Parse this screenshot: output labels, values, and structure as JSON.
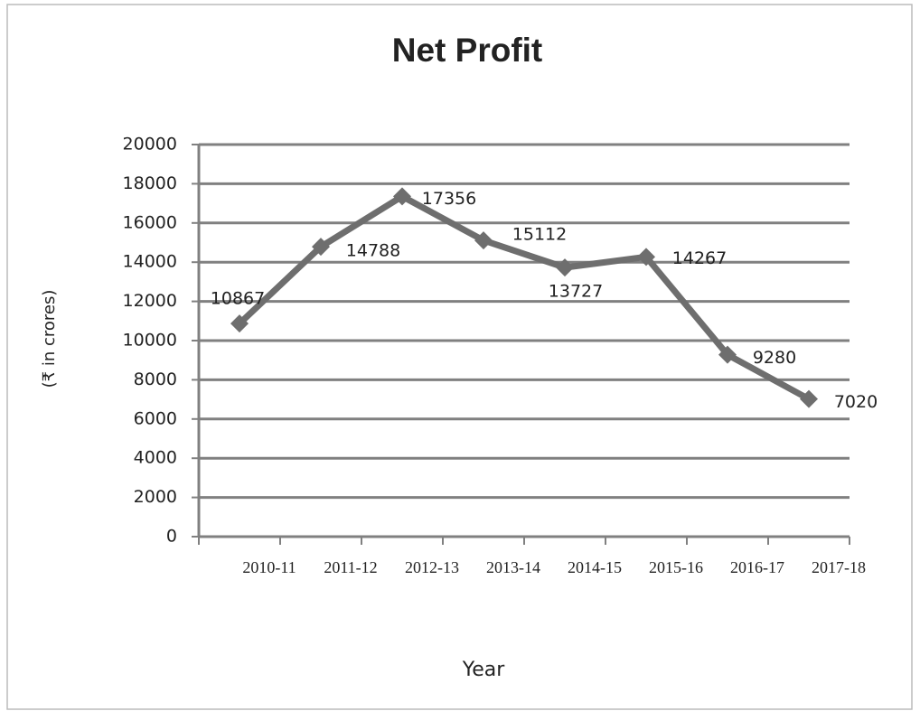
{
  "chart_data": {
    "type": "line",
    "title": "Net Profit",
    "x_label": "Year",
    "y_label": "(₹ in crores)",
    "categories": [
      "2010-11",
      "2011-12",
      "2012-13",
      "2013-14",
      "2014-15",
      "2015-16",
      "2016-17",
      "2017-18"
    ],
    "series": [
      {
        "name": "Net Profit",
        "color": "#6e6e6e",
        "values": [
          10867,
          14788,
          17356,
          15112,
          13727,
          14267,
          9280,
          7020
        ]
      }
    ],
    "ylim": [
      0,
      20000
    ],
    "yticks": [
      0,
      2000,
      4000,
      6000,
      8000,
      10000,
      12000,
      14000,
      16000,
      18000,
      20000
    ],
    "grid": true
  }
}
